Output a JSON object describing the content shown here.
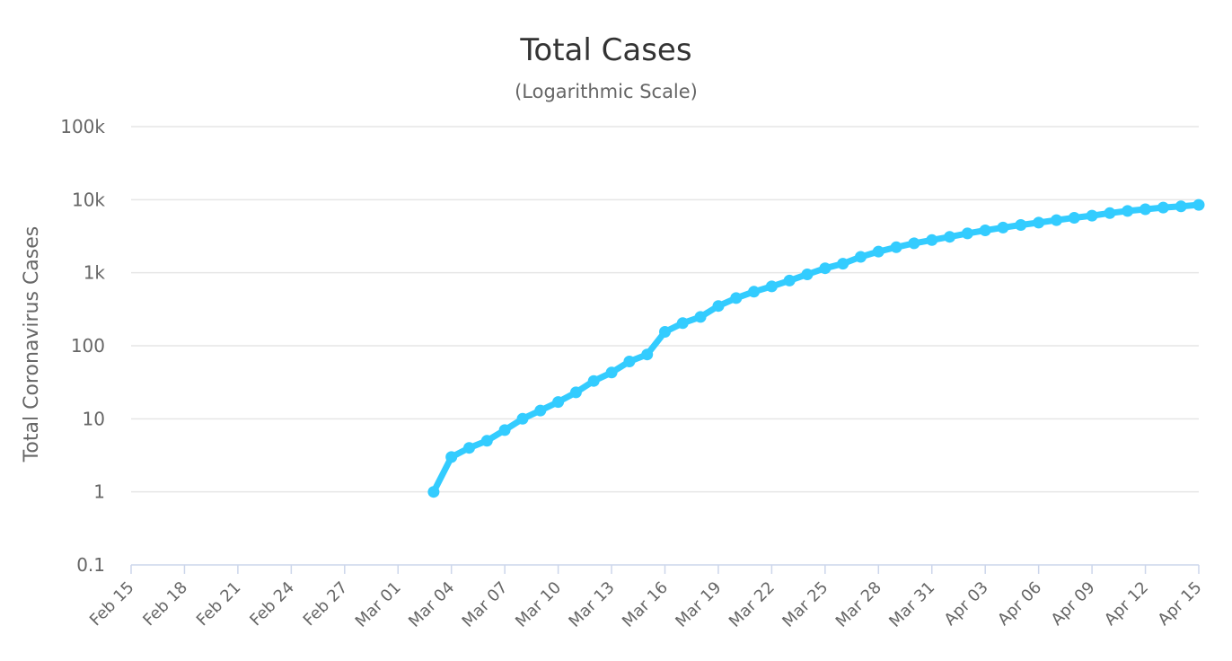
{
  "chart_data": {
    "type": "line",
    "title": "Total Cases",
    "subtitle": "(Logarithmic Scale)",
    "ylabel": "Total Coronavirus Cases",
    "xlabel": "",
    "yscale": "log",
    "ylim": [
      0.1,
      100000
    ],
    "yticks": [
      {
        "value": 0.1,
        "label": "0.1"
      },
      {
        "value": 1,
        "label": "1"
      },
      {
        "value": 10,
        "label": "10"
      },
      {
        "value": 100,
        "label": "100"
      },
      {
        "value": 1000,
        "label": "1k"
      },
      {
        "value": 10000,
        "label": "10k"
      },
      {
        "value": 100000,
        "label": "100k"
      }
    ],
    "xticks": [
      "Feb 15",
      "Feb 18",
      "Feb 21",
      "Feb 24",
      "Feb 27",
      "Mar 01",
      "Mar 04",
      "Mar 07",
      "Mar 10",
      "Mar 13",
      "Mar 16",
      "Mar 19",
      "Mar 22",
      "Mar 25",
      "Mar 28",
      "Mar 31",
      "Apr 03",
      "Apr 06",
      "Apr 09",
      "Apr 12",
      "Apr 15"
    ],
    "x_start": "Feb 15",
    "x_end": "Apr 15",
    "x_step_days": 1,
    "colors": {
      "line": "#33ccff",
      "grid": "#e6e6e6",
      "axis": "#ccd6eb"
    },
    "series": [
      {
        "name": "Total Cases",
        "x": [
          "Mar 03",
          "Mar 04",
          "Mar 05",
          "Mar 06",
          "Mar 07",
          "Mar 08",
          "Mar 09",
          "Mar 10",
          "Mar 11",
          "Mar 12",
          "Mar 13",
          "Mar 14",
          "Mar 15",
          "Mar 16",
          "Mar 17",
          "Mar 18",
          "Mar 19",
          "Mar 20",
          "Mar 21",
          "Mar 22",
          "Mar 23",
          "Mar 24",
          "Mar 25",
          "Mar 26",
          "Mar 27",
          "Mar 28",
          "Mar 29",
          "Mar 30",
          "Mar 31",
          "Apr 01",
          "Apr 02",
          "Apr 03",
          "Apr 04",
          "Apr 05",
          "Apr 06",
          "Apr 07",
          "Apr 08",
          "Apr 09",
          "Apr 10",
          "Apr 11",
          "Apr 12",
          "Apr 13",
          "Apr 14",
          "Apr 15"
        ],
        "values": [
          1,
          3,
          4,
          5,
          7,
          10,
          13,
          17,
          23,
          33,
          43,
          61,
          76,
          155,
          204,
          248,
          350,
          450,
          550,
          650,
          780,
          950,
          1150,
          1330,
          1650,
          1950,
          2230,
          2530,
          2800,
          3100,
          3450,
          3800,
          4150,
          4500,
          4850,
          5250,
          5650,
          6050,
          6550,
          7000,
          7400,
          7800,
          8100,
          8500
        ]
      }
    ]
  }
}
